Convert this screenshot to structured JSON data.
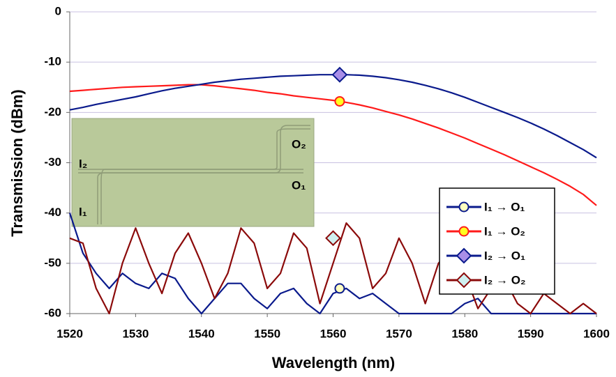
{
  "chart_data": {
    "type": "line",
    "x_label": "Wavelength (nm)",
    "y_label": "Transmission (dBm)",
    "xlim": [
      1520,
      1600
    ],
    "xticks": [
      1520,
      1530,
      1540,
      1550,
      1560,
      1570,
      1580,
      1590,
      1600
    ],
    "ylim": [
      -60,
      0
    ],
    "yticks": [
      -60,
      -50,
      -40,
      -30,
      -20,
      -10,
      0
    ],
    "grid": true,
    "grid_color": "#c8c0e0",
    "legend": "right",
    "inset_labels": [
      "I₂",
      "O₂",
      "O₁",
      "I₁"
    ],
    "x": [
      1520,
      1522,
      1524,
      1526,
      1528,
      1530,
      1532,
      1534,
      1536,
      1538,
      1540,
      1542,
      1544,
      1546,
      1548,
      1550,
      1552,
      1554,
      1556,
      1558,
      1560,
      1562,
      1564,
      1566,
      1568,
      1570,
      1572,
      1574,
      1576,
      1578,
      1580,
      1582,
      1584,
      1586,
      1588,
      1590,
      1592,
      1594,
      1596,
      1598,
      1600
    ],
    "series": [
      {
        "name": "I₁ → O₁",
        "color": "#0a1a8c",
        "marker": {
          "shape": "circle",
          "color": "#ffffc0",
          "x": 1561,
          "y": -55
        },
        "values": [
          -40,
          -48,
          -52,
          -55,
          -52,
          -54,
          -55,
          -52,
          -53,
          -57,
          -60,
          -57,
          -54,
          -54,
          -57,
          -59,
          -56,
          -55,
          -58,
          -60,
          -56,
          -55,
          -57,
          -56,
          -58,
          -60,
          -60,
          -60,
          -60,
          -60,
          -58,
          -57,
          -60,
          -60,
          -60,
          -60,
          -60,
          -60,
          -60,
          -60,
          -60
        ]
      },
      {
        "name": "I₁ → O₂",
        "color": "#ff1a1a",
        "marker": {
          "shape": "circle",
          "color": "#ffff20",
          "x": 1561,
          "y": -17.8
        },
        "values": [
          -15.8,
          -15.6,
          -15.4,
          -15.2,
          -15.0,
          -14.9,
          -14.8,
          -14.7,
          -14.6,
          -14.5,
          -14.5,
          -14.7,
          -15.0,
          -15.3,
          -15.6,
          -16.0,
          -16.3,
          -16.7,
          -17.0,
          -17.3,
          -17.6,
          -18.0,
          -18.5,
          -19.1,
          -19.8,
          -20.5,
          -21.3,
          -22.2,
          -23.1,
          -24.1,
          -25.1,
          -26.2,
          -27.3,
          -28.4,
          -29.6,
          -30.8,
          -32.0,
          -33.3,
          -34.7,
          -36.3,
          -38.5
        ]
      },
      {
        "name": "I₂ → O₁",
        "color": "#0a1a8c",
        "marker": {
          "shape": "diamond",
          "color": "#a98ee8",
          "x": 1561,
          "y": -12.5
        },
        "values": [
          -19.5,
          -19.0,
          -18.4,
          -17.9,
          -17.4,
          -16.9,
          -16.3,
          -15.7,
          -15.2,
          -14.8,
          -14.4,
          -14.0,
          -13.7,
          -13.4,
          -13.2,
          -13.0,
          -12.8,
          -12.7,
          -12.6,
          -12.5,
          -12.5,
          -12.5,
          -12.6,
          -12.8,
          -13.1,
          -13.5,
          -14.0,
          -14.6,
          -15.3,
          -16.1,
          -17.0,
          -18.0,
          -19.0,
          -20.0,
          -21.0,
          -22.1,
          -23.3,
          -24.6,
          -26.0,
          -27.4,
          -29.0
        ]
      },
      {
        "name": "I₂ → O₂",
        "color": "#8b0a0a",
        "marker": {
          "shape": "diamond",
          "color": "#d0f0f0",
          "x": 1560,
          "y": -45
        },
        "values": [
          -45,
          -46,
          -55,
          -60,
          -50,
          -43,
          -50,
          -56,
          -48,
          -44,
          -50,
          -57,
          -52,
          -43,
          -46,
          -55,
          -52,
          -44,
          -47,
          -58,
          -50,
          -42,
          -45,
          -55,
          -52,
          -45,
          -50,
          -58,
          -50,
          -47,
          -52,
          -59,
          -55,
          -53,
          -58,
          -60,
          -56,
          -58,
          -60,
          -58,
          -60
        ]
      }
    ]
  }
}
